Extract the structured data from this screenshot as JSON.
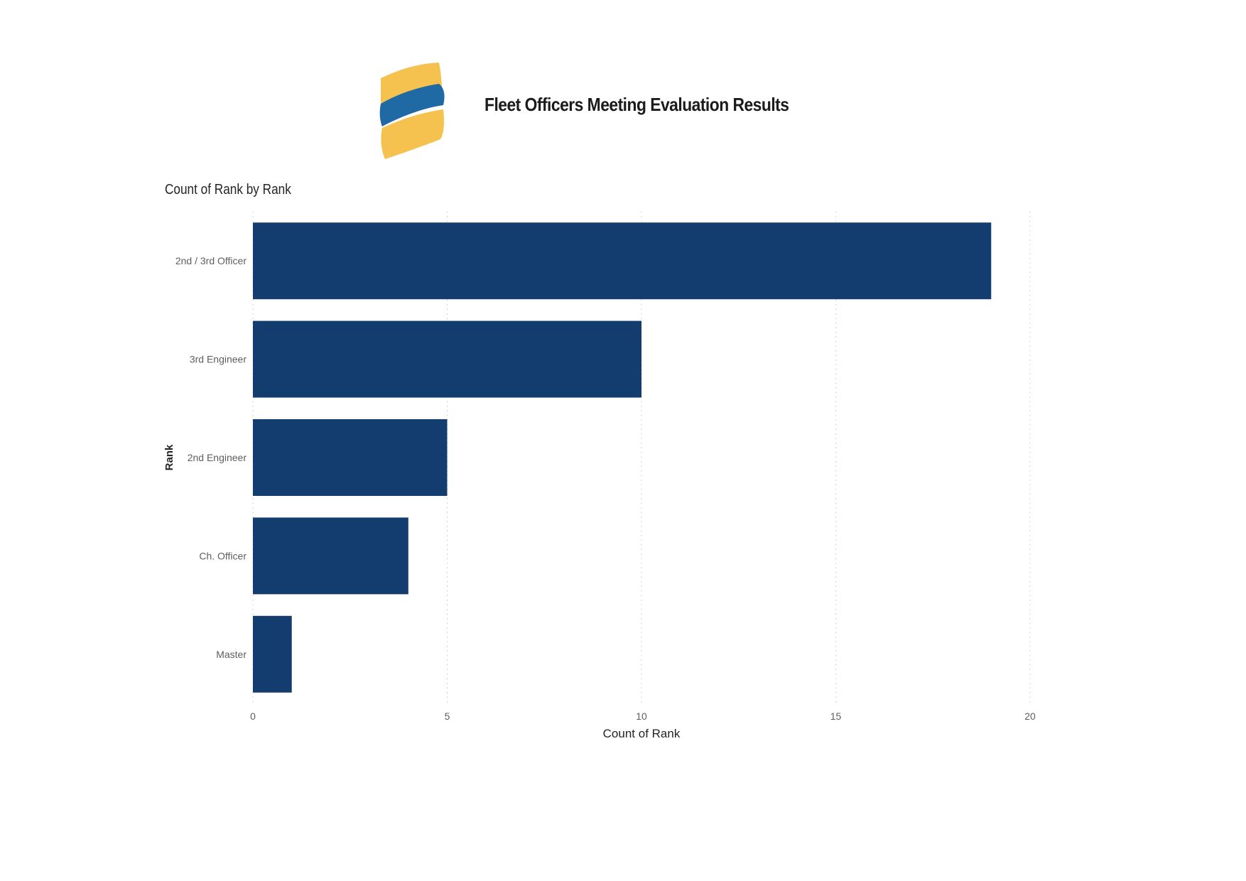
{
  "header": {
    "title": "Fleet Officers Meeting Evaluation Results",
    "logo_icon": "striped-banner-logo-icon",
    "logo_colors": {
      "stripe_outer": "#F5C250",
      "stripe_middle": "#1F6AA5"
    }
  },
  "chart_data": {
    "type": "bar",
    "orientation": "horizontal",
    "title": "Count of Rank by Rank",
    "xlabel": "Count of Rank",
    "ylabel": "Rank",
    "categories": [
      "2nd / 3rd Officer",
      "3rd Engineer",
      "2nd Engineer",
      "Ch. Officer",
      "Master"
    ],
    "values": [
      19,
      10,
      5,
      4,
      1
    ],
    "xlim": [
      0,
      20
    ],
    "xticks": [
      0,
      5,
      10,
      15,
      20
    ],
    "grid": true,
    "bar_color": "#123D6E"
  }
}
